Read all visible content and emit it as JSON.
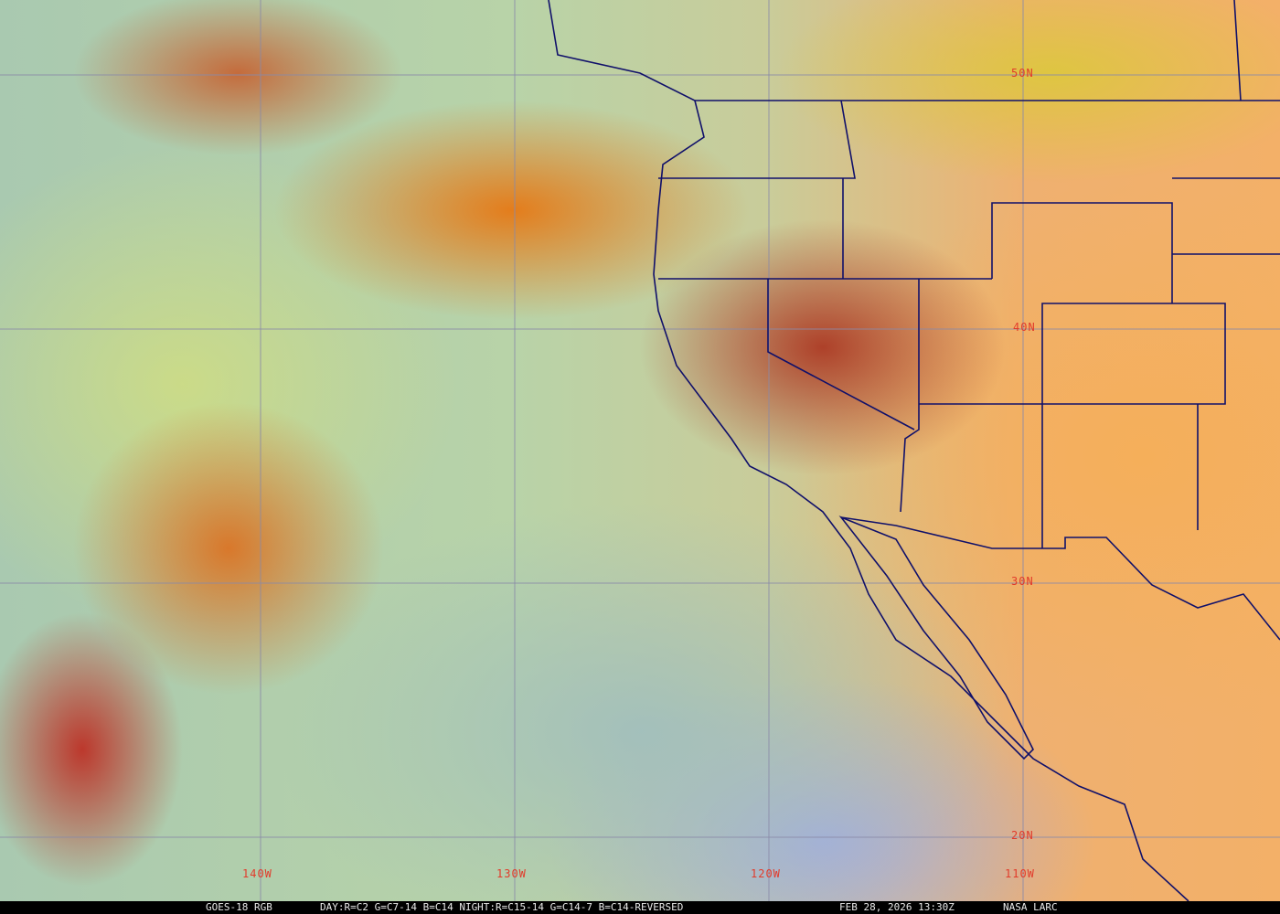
{
  "map": {
    "lat_labels": [
      "50N",
      "40N",
      "30N",
      "20N"
    ],
    "lon_labels": [
      "140W",
      "130W",
      "120W",
      "110W"
    ]
  },
  "caption": {
    "satellite": "GOES-18 RGB",
    "recipe": "DAY:R=C2 G=C7-14 B=C14 NIGHT:R=C15-14 G=C14-7 B=C14-REVERSED",
    "timestamp": "FEB 28, 2026 13:30Z",
    "source": "NASA LARC"
  },
  "colors": {
    "grid": "#8a8aa8",
    "borders": "#10106a",
    "labels": "#e23a2a"
  }
}
